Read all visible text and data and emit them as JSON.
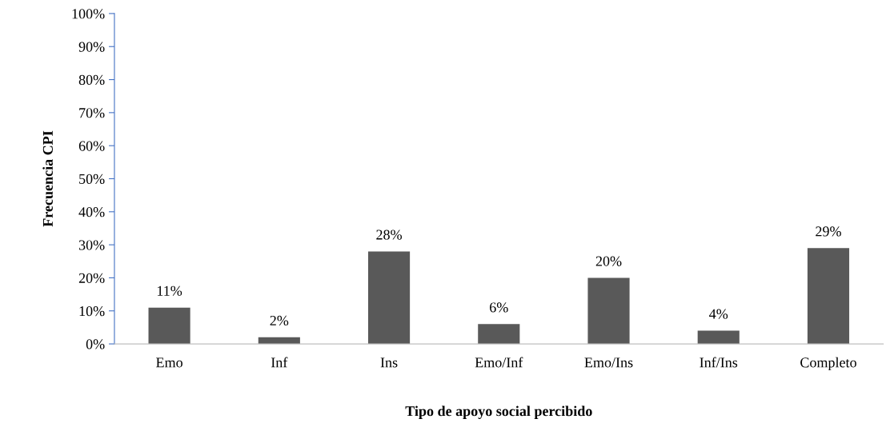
{
  "chart_data": {
    "type": "bar",
    "xlabel": "Tipo de apoyo social percibido",
    "ylabel": "Frecuencia CPI",
    "categories": [
      "Emo",
      "Inf",
      "Ins",
      "Emo/Inf",
      "Emo/Ins",
      "Inf/Ins",
      "Completo"
    ],
    "values": [
      11,
      2,
      28,
      6,
      20,
      4,
      29
    ],
    "value_labels": [
      "11%",
      "2%",
      "28%",
      "6%",
      "20%",
      "4%",
      "29%"
    ],
    "color": "#595959",
    "ylim": [
      0,
      100
    ],
    "yticks": [
      {
        "value": 0,
        "label": "0%"
      },
      {
        "value": 10,
        "label": "10%"
      },
      {
        "value": 20,
        "label": "20%"
      },
      {
        "value": 30,
        "label": "30%"
      },
      {
        "value": 40,
        "label": "40%"
      },
      {
        "value": 50,
        "label": "50%"
      },
      {
        "value": 60,
        "label": "60%"
      },
      {
        "value": 70,
        "label": "70%"
      },
      {
        "value": 80,
        "label": "80%"
      },
      {
        "value": 90,
        "label": "90%"
      },
      {
        "value": 100,
        "label": "100%"
      }
    ],
    "grid": false,
    "legend": false
  }
}
